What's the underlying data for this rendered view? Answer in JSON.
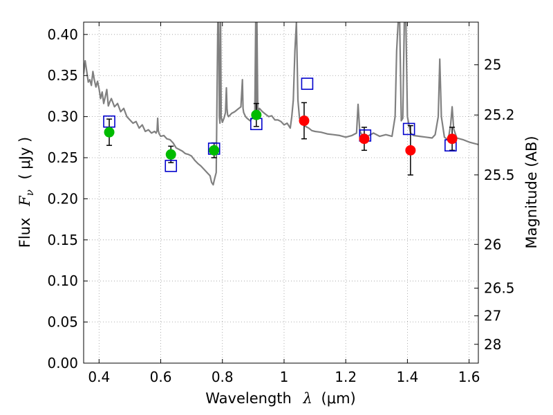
{
  "chart_data": {
    "type": "scatter",
    "xlabel_text": "Wavelength",
    "xlabel_symbol": "λ",
    "xlabel_unit": "(μm)",
    "ylabel_text": "Flux",
    "ylabel_symbol": "F",
    "ylabel_symbol_sub": "ν",
    "ylabel_unit": "( μJy )",
    "y2label": "Magnitude (AB)",
    "xlim": [
      0.35,
      1.63
    ],
    "ylim": [
      0.0,
      0.415
    ],
    "grid": true,
    "x_ticks": [
      0.4,
      0.6,
      0.8,
      1.0,
      1.2,
      1.4,
      1.6
    ],
    "x_tick_labels": [
      "0.4",
      "0.6",
      "0.8",
      "1",
      "1.2",
      "1.4",
      "1.6"
    ],
    "y_ticks": [
      0.0,
      0.05,
      0.1,
      0.15,
      0.2,
      0.25,
      0.3,
      0.35,
      0.4
    ],
    "y_tick_labels": [
      "0.00",
      "0.05",
      "0.10",
      "0.15",
      "0.20",
      "0.25",
      "0.30",
      "0.35",
      "0.40"
    ],
    "mag_ticks": [
      {
        "label": "25",
        "mag": 25.0
      },
      {
        "label": "25.2",
        "mag": 25.2
      },
      {
        "label": "25.5",
        "mag": 25.5
      },
      {
        "label": "26",
        "mag": 26.0
      },
      {
        "label": "26.5",
        "mag": 26.5
      },
      {
        "label": "27",
        "mag": 27.0
      },
      {
        "label": "28",
        "mag": 28.0
      }
    ],
    "colors": {
      "model": "#808080",
      "green": "#00bb00",
      "red": "#ff0000",
      "square": "#0000cc",
      "errorbar": "#000000",
      "grid": "#999999"
    },
    "model_spectrum": {
      "x": [
        0.35,
        0.355,
        0.36,
        0.365,
        0.37,
        0.375,
        0.38,
        0.385,
        0.39,
        0.395,
        0.4,
        0.405,
        0.41,
        0.415,
        0.42,
        0.425,
        0.43,
        0.435,
        0.44,
        0.45,
        0.46,
        0.47,
        0.48,
        0.49,
        0.5,
        0.51,
        0.52,
        0.53,
        0.54,
        0.55,
        0.56,
        0.57,
        0.58,
        0.585,
        0.588,
        0.59,
        0.592,
        0.595,
        0.6,
        0.61,
        0.62,
        0.63,
        0.64,
        0.65,
        0.66,
        0.67,
        0.68,
        0.69,
        0.7,
        0.71,
        0.72,
        0.73,
        0.74,
        0.75,
        0.76,
        0.765,
        0.77,
        0.775,
        0.78,
        0.785,
        0.788,
        0.79,
        0.792,
        0.794,
        0.796,
        0.8,
        0.805,
        0.81,
        0.813,
        0.815,
        0.817,
        0.82,
        0.83,
        0.84,
        0.85,
        0.86,
        0.865,
        0.867,
        0.869,
        0.875,
        0.88,
        0.89,
        0.9,
        0.905,
        0.908,
        0.91,
        0.912,
        0.915,
        0.92,
        0.93,
        0.94,
        0.95,
        0.96,
        0.97,
        0.98,
        0.99,
        1.0,
        1.01,
        1.02,
        1.025,
        1.03,
        1.035,
        1.04,
        1.045,
        1.05,
        1.06,
        1.07,
        1.08,
        1.09,
        1.1,
        1.12,
        1.14,
        1.16,
        1.18,
        1.2,
        1.22,
        1.235,
        1.24,
        1.245,
        1.25,
        1.27,
        1.29,
        1.31,
        1.33,
        1.35,
        1.36,
        1.365,
        1.37,
        1.375,
        1.38,
        1.385,
        1.39,
        1.395,
        1.4,
        1.405,
        1.41,
        1.42,
        1.44,
        1.46,
        1.48,
        1.49,
        1.5,
        1.505,
        1.51,
        1.52,
        1.53,
        1.535,
        1.54,
        1.545,
        1.55,
        1.56,
        1.58,
        1.6,
        1.63
      ],
      "y": [
        0.352,
        0.368,
        0.355,
        0.342,
        0.345,
        0.338,
        0.355,
        0.344,
        0.336,
        0.343,
        0.334,
        0.322,
        0.33,
        0.316,
        0.324,
        0.333,
        0.313,
        0.318,
        0.322,
        0.312,
        0.316,
        0.306,
        0.31,
        0.3,
        0.296,
        0.292,
        0.294,
        0.286,
        0.29,
        0.282,
        0.284,
        0.28,
        0.282,
        0.28,
        0.283,
        0.298,
        0.283,
        0.279,
        0.276,
        0.277,
        0.273,
        0.272,
        0.268,
        0.262,
        0.26,
        0.258,
        0.255,
        0.254,
        0.252,
        0.247,
        0.243,
        0.24,
        0.236,
        0.232,
        0.228,
        0.22,
        0.217,
        0.225,
        0.232,
        0.415,
        0.415,
        0.3,
        0.292,
        0.415,
        0.3,
        0.293,
        0.298,
        0.305,
        0.335,
        0.31,
        0.302,
        0.3,
        0.304,
        0.306,
        0.309,
        0.312,
        0.345,
        0.31,
        0.305,
        0.3,
        0.298,
        0.295,
        0.3,
        0.303,
        0.415,
        0.3,
        0.415,
        0.305,
        0.31,
        0.306,
        0.303,
        0.3,
        0.301,
        0.296,
        0.296,
        0.294,
        0.29,
        0.292,
        0.286,
        0.3,
        0.32,
        0.38,
        0.415,
        0.32,
        0.298,
        0.293,
        0.288,
        0.286,
        0.283,
        0.282,
        0.281,
        0.279,
        0.278,
        0.277,
        0.275,
        0.277,
        0.28,
        0.315,
        0.284,
        0.279,
        0.276,
        0.28,
        0.276,
        0.278,
        0.276,
        0.3,
        0.38,
        0.415,
        0.415,
        0.295,
        0.298,
        0.415,
        0.415,
        0.3,
        0.29,
        0.28,
        0.277,
        0.276,
        0.275,
        0.274,
        0.278,
        0.3,
        0.37,
        0.3,
        0.275,
        0.272,
        0.278,
        0.29,
        0.312,
        0.285,
        0.274,
        0.272,
        0.269,
        0.266
      ]
    },
    "photometry_points": [
      {
        "x": 0.433,
        "y": 0.281,
        "err": 0.016,
        "color": "green"
      },
      {
        "x": 0.633,
        "y": 0.254,
        "err": 0.01,
        "color": "green"
      },
      {
        "x": 0.773,
        "y": 0.259,
        "err": 0.009,
        "color": "green"
      },
      {
        "x": 0.91,
        "y": 0.302,
        "err": 0.014,
        "color": "green"
      },
      {
        "x": 1.065,
        "y": 0.295,
        "err": 0.022,
        "color": "red"
      },
      {
        "x": 1.26,
        "y": 0.273,
        "err": 0.014,
        "color": "red"
      },
      {
        "x": 1.41,
        "y": 0.259,
        "err": 0.03,
        "color": "red"
      },
      {
        "x": 1.545,
        "y": 0.273,
        "err": 0.014,
        "color": "red"
      }
    ],
    "model_photometry": [
      {
        "x": 0.433,
        "y": 0.294
      },
      {
        "x": 0.633,
        "y": 0.24
      },
      {
        "x": 0.773,
        "y": 0.261
      },
      {
        "x": 0.91,
        "y": 0.291
      },
      {
        "x": 1.075,
        "y": 0.34
      },
      {
        "x": 1.263,
        "y": 0.277
      },
      {
        "x": 1.405,
        "y": 0.285
      },
      {
        "x": 1.54,
        "y": 0.265
      }
    ]
  }
}
